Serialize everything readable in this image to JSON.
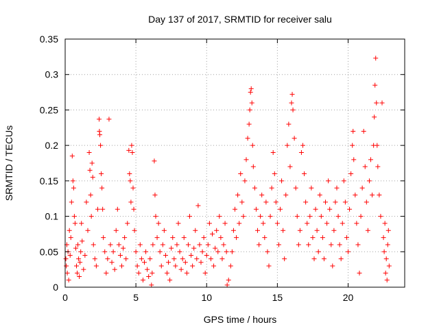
{
  "chart_data": {
    "type": "scatter",
    "title": "Day 137 of 2017, SRMTID for receiver salu",
    "xlabel": "GPS time / hours",
    "ylabel": "SRMTID / TECUs",
    "xlim": [
      0,
      24
    ],
    "ylim": [
      0,
      0.35
    ],
    "xticks": [
      0,
      5,
      10,
      15,
      20
    ],
    "xtick_labels": [
      "0",
      "5",
      "10",
      "15",
      "20"
    ],
    "yticks": [
      0,
      0.05,
      0.1,
      0.15,
      0.2,
      0.25,
      0.3,
      0.35
    ],
    "ytick_labels": [
      "0",
      "0.05",
      "0.1",
      "0.15",
      "0.2",
      "0.25",
      "0.3",
      "0.35"
    ],
    "grid": true,
    "marker": "plus",
    "color": "#ff0000",
    "series": [
      {
        "name": "SRMTID",
        "points": [
          [
            0.05,
            0.04
          ],
          [
            0.08,
            0.03
          ],
          [
            0.12,
            0.06
          ],
          [
            0.15,
            0.02
          ],
          [
            0.2,
            0.05
          ],
          [
            0.25,
            0.01
          ],
          [
            0.3,
            0.08
          ],
          [
            0.35,
            0.045
          ],
          [
            0.4,
            0.07
          ],
          [
            0.45,
            0.12
          ],
          [
            0.5,
            0.185
          ],
          [
            0.55,
            0.15
          ],
          [
            0.6,
            0.14
          ],
          [
            0.65,
            0.1
          ],
          [
            0.7,
            0.09
          ],
          [
            0.75,
            0.055
          ],
          [
            0.8,
            0.03
          ],
          [
            0.85,
            0.02
          ],
          [
            0.9,
            0.06
          ],
          [
            0.95,
            0.04
          ],
          [
            1.0,
            0.015
          ],
          [
            1.05,
            0.035
          ],
          [
            1.1,
            0.05
          ],
          [
            1.15,
            0.09
          ],
          [
            1.2,
            0.065
          ],
          [
            1.3,
            0.025
          ],
          [
            1.4,
            0.045
          ],
          [
            1.5,
            0.12
          ],
          [
            1.6,
            0.08
          ],
          [
            1.7,
            0.19
          ],
          [
            1.75,
            0.165
          ],
          [
            1.8,
            0.13
          ],
          [
            1.85,
            0.1
          ],
          [
            1.9,
            0.175
          ],
          [
            1.95,
            0.155
          ],
          [
            2.0,
            0.06
          ],
          [
            2.1,
            0.04
          ],
          [
            2.2,
            0.03
          ],
          [
            2.3,
            0.11
          ],
          [
            2.4,
            0.237
          ],
          [
            2.42,
            0.22
          ],
          [
            2.45,
            0.215
          ],
          [
            2.5,
            0.2
          ],
          [
            2.55,
            0.16
          ],
          [
            2.6,
            0.14
          ],
          [
            2.65,
            0.11
          ],
          [
            2.7,
            0.07
          ],
          [
            2.8,
            0.05
          ],
          [
            2.9,
            0.02
          ],
          [
            3.0,
            0.04
          ],
          [
            3.1,
            0.237
          ],
          [
            3.2,
            0.06
          ],
          [
            3.3,
            0.035
          ],
          [
            3.4,
            0.05
          ],
          [
            3.5,
            0.025
          ],
          [
            3.6,
            0.08
          ],
          [
            3.7,
            0.11
          ],
          [
            3.8,
            0.06
          ],
          [
            3.9,
            0.045
          ],
          [
            4.0,
            0.03
          ],
          [
            4.1,
            0.055
          ],
          [
            4.2,
            0.07
          ],
          [
            4.3,
            0.04
          ],
          [
            4.4,
            0.09
          ],
          [
            4.5,
            0.193
          ],
          [
            4.55,
            0.16
          ],
          [
            4.6,
            0.15
          ],
          [
            4.65,
            0.12
          ],
          [
            4.7,
            0.2
          ],
          [
            4.75,
            0.19
          ],
          [
            4.8,
            0.14
          ],
          [
            4.85,
            0.11
          ],
          [
            4.9,
            0.08
          ],
          [
            5.0,
            0.05
          ],
          [
            5.1,
            0.03
          ],
          [
            5.2,
            0.02
          ],
          [
            5.3,
            0.06
          ],
          [
            5.4,
            0.04
          ],
          [
            5.5,
            0.01
          ],
          [
            5.6,
            0.035
          ],
          [
            5.7,
            0.05
          ],
          [
            5.8,
            0.025
          ],
          [
            5.9,
            0.015
          ],
          [
            6.0,
            0.04
          ],
          [
            6.1,
            0.003
          ],
          [
            6.15,
            0.02
          ],
          [
            6.2,
            0.06
          ],
          [
            6.3,
            0.178
          ],
          [
            6.35,
            0.13
          ],
          [
            6.4,
            0.1
          ],
          [
            6.5,
            0.07
          ],
          [
            6.6,
            0.09
          ],
          [
            6.7,
            0.05
          ],
          [
            6.8,
            0.03
          ],
          [
            6.9,
            0.06
          ],
          [
            7.0,
            0.08
          ],
          [
            7.1,
            0.045
          ],
          [
            7.2,
            0.02
          ],
          [
            7.3,
            0.035
          ],
          [
            7.4,
            0.01
          ],
          [
            7.5,
            0.055
          ],
          [
            7.6,
            0.07
          ],
          [
            7.7,
            0.04
          ],
          [
            7.8,
            0.03
          ],
          [
            7.9,
            0.06
          ],
          [
            8.0,
            0.09
          ],
          [
            8.1,
            0.05
          ],
          [
            8.2,
            0.025
          ],
          [
            8.3,
            0.04
          ],
          [
            8.4,
            0.07
          ],
          [
            8.5,
            0.035
          ],
          [
            8.6,
            0.02
          ],
          [
            8.7,
            0.06
          ],
          [
            8.8,
            0.1
          ],
          [
            8.9,
            0.045
          ],
          [
            9.0,
            0.03
          ],
          [
            9.1,
            0.055
          ],
          [
            9.2,
            0.08
          ],
          [
            9.3,
            0.04
          ],
          [
            9.4,
            0.115
          ],
          [
            9.5,
            0.06
          ],
          [
            9.6,
            0.035
          ],
          [
            9.7,
            0.05
          ],
          [
            9.8,
            0.07
          ],
          [
            9.9,
            0.02
          ],
          [
            10.0,
            0.045
          ],
          [
            10.1,
            0.06
          ],
          [
            10.2,
            0.09
          ],
          [
            10.3,
            0.04
          ],
          [
            10.4,
            0.075
          ],
          [
            10.5,
            0.03
          ],
          [
            10.6,
            0.055
          ],
          [
            10.7,
            0.08
          ],
          [
            10.8,
            0.05
          ],
          [
            10.9,
            0.1
          ],
          [
            11.0,
            0.07
          ],
          [
            11.1,
            0.04
          ],
          [
            11.2,
            0.06
          ],
          [
            11.3,
            0.09
          ],
          [
            11.4,
            0.05
          ],
          [
            11.45,
            0.003
          ],
          [
            11.55,
            0.01
          ],
          [
            11.7,
            0.03
          ],
          [
            11.8,
            0.05
          ],
          [
            11.9,
            0.08
          ],
          [
            12.0,
            0.11
          ],
          [
            12.1,
            0.07
          ],
          [
            12.2,
            0.13
          ],
          [
            12.3,
            0.09
          ],
          [
            12.4,
            0.16
          ],
          [
            12.5,
            0.12
          ],
          [
            12.6,
            0.1
          ],
          [
            12.7,
            0.15
          ],
          [
            12.8,
            0.18
          ],
          [
            12.9,
            0.21
          ],
          [
            13.0,
            0.23
          ],
          [
            13.05,
            0.25
          ],
          [
            13.1,
            0.275
          ],
          [
            13.15,
            0.28
          ],
          [
            13.2,
            0.26
          ],
          [
            13.25,
            0.2
          ],
          [
            13.3,
            0.17
          ],
          [
            13.4,
            0.14
          ],
          [
            13.5,
            0.11
          ],
          [
            13.6,
            0.08
          ],
          [
            13.7,
            0.06
          ],
          [
            13.8,
            0.1
          ],
          [
            13.9,
            0.13
          ],
          [
            14.0,
            0.09
          ],
          [
            14.1,
            0.07
          ],
          [
            14.2,
            0.12
          ],
          [
            14.3,
            0.05
          ],
          [
            14.4,
            0.03
          ],
          [
            14.5,
            0.1
          ],
          [
            14.6,
            0.14
          ],
          [
            14.7,
            0.19
          ],
          [
            14.8,
            0.16
          ],
          [
            14.9,
            0.12
          ],
          [
            15.0,
            0.09
          ],
          [
            15.1,
            0.06
          ],
          [
            15.2,
            0.11
          ],
          [
            15.3,
            0.15
          ],
          [
            15.4,
            0.08
          ],
          [
            15.5,
            0.04
          ],
          [
            15.6,
            0.13
          ],
          [
            15.7,
            0.2
          ],
          [
            15.8,
            0.23
          ],
          [
            15.9,
            0.17
          ],
          [
            16.0,
            0.26
          ],
          [
            16.05,
            0.272
          ],
          [
            16.1,
            0.25
          ],
          [
            16.2,
            0.21
          ],
          [
            16.3,
            0.14
          ],
          [
            16.4,
            0.1
          ],
          [
            16.5,
            0.06
          ],
          [
            16.6,
            0.08
          ],
          [
            16.7,
            0.19
          ],
          [
            16.8,
            0.2
          ],
          [
            16.9,
            0.16
          ],
          [
            17.0,
            0.12
          ],
          [
            17.1,
            0.09
          ],
          [
            17.2,
            0.06
          ],
          [
            17.3,
            0.1
          ],
          [
            17.4,
            0.14
          ],
          [
            17.5,
            0.07
          ],
          [
            17.6,
            0.04
          ],
          [
            17.7,
            0.11
          ],
          [
            17.8,
            0.08
          ],
          [
            17.9,
            0.05
          ],
          [
            18.0,
            0.13
          ],
          [
            18.1,
            0.1
          ],
          [
            18.2,
            0.07
          ],
          [
            18.3,
            0.04
          ],
          [
            18.4,
            0.12
          ],
          [
            18.5,
            0.09
          ],
          [
            18.6,
            0.15
          ],
          [
            18.7,
            0.11
          ],
          [
            18.8,
            0.06
          ],
          [
            18.9,
            0.03
          ],
          [
            19.0,
            0.08
          ],
          [
            19.1,
            0.12
          ],
          [
            19.2,
            0.14
          ],
          [
            19.3,
            0.1
          ],
          [
            19.4,
            0.06
          ],
          [
            19.5,
            0.04
          ],
          [
            19.6,
            0.09
          ],
          [
            19.7,
            0.15
          ],
          [
            19.8,
            0.12
          ],
          [
            19.9,
            0.07
          ],
          [
            20.0,
            0.05
          ],
          [
            20.1,
            0.11
          ],
          [
            20.2,
            0.16
          ],
          [
            20.3,
            0.2
          ],
          [
            20.35,
            0.22
          ],
          [
            20.4,
            0.18
          ],
          [
            20.5,
            0.13
          ],
          [
            20.6,
            0.09
          ],
          [
            20.7,
            0.06
          ],
          [
            20.8,
            0.02
          ],
          [
            20.9,
            0.1
          ],
          [
            21.0,
            0.14
          ],
          [
            21.1,
            0.22
          ],
          [
            21.2,
            0.17
          ],
          [
            21.3,
            0.12
          ],
          [
            21.4,
            0.08
          ],
          [
            21.5,
            0.15
          ],
          [
            21.6,
            0.18
          ],
          [
            21.7,
            0.13
          ],
          [
            21.8,
            0.2
          ],
          [
            21.85,
            0.24
          ],
          [
            21.9,
            0.285
          ],
          [
            21.95,
            0.323
          ],
          [
            22.0,
            0.26
          ],
          [
            22.05,
            0.2
          ],
          [
            22.1,
            0.17
          ],
          [
            22.2,
            0.13
          ],
          [
            22.3,
            0.1
          ],
          [
            22.4,
            0.26
          ],
          [
            22.5,
            0.07
          ],
          [
            22.55,
            0.05
          ],
          [
            22.6,
            0.09
          ],
          [
            22.65,
            0.02
          ],
          [
            22.7,
            0.04
          ],
          [
            22.75,
            0.01
          ],
          [
            22.8,
            0.06
          ],
          [
            22.85,
            0.08
          ],
          [
            22.9,
            0.03
          ]
        ]
      }
    ]
  }
}
